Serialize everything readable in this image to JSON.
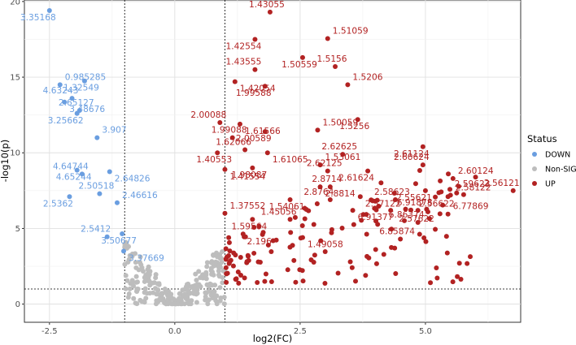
{
  "chart_data": {
    "type": "scatter",
    "title": "",
    "xlabel": "log2(FC)",
    "ylabel": "-log10(p)",
    "xlim": [
      -3.0,
      6.9
    ],
    "ylim": [
      -1.2,
      20.1
    ],
    "x_ticks": [
      -2.5,
      0.0,
      2.5,
      5.0
    ],
    "x_tick_labels": [
      "-2.5",
      "0.0",
      "2.5",
      "5.0"
    ],
    "y_ticks": [
      0,
      5,
      10,
      15,
      20
    ],
    "y_tick_labels": [
      "0",
      "5",
      "10",
      "15",
      "20"
    ],
    "grid": true,
    "fc_cutoff_lines": [
      -1.0,
      1.0
    ],
    "p_cutoff_line": 1.0,
    "legend": {
      "title": "Status",
      "position": "right",
      "entries": [
        {
          "name": "DOWN",
          "color": "#6a9ee0"
        },
        {
          "name": "Non-SIG",
          "color": "#bdbdbd"
        },
        {
          "name": "UP",
          "color": "#b22222"
        }
      ]
    },
    "colors": {
      "DOWN": "#6a9ee0",
      "Non-SIG": "#bdbdbd",
      "UP": "#b22222"
    },
    "labeled_points": [
      {
        "status": "DOWN",
        "label": "3.35168",
        "x": -2.5,
        "y": 19.4
      },
      {
        "status": "DOWN",
        "label": "0.985285",
        "x": -2.29,
        "y": 14.5
      },
      {
        "status": "DOWN",
        "label": "1.32549",
        "x": -1.8,
        "y": 14.75
      },
      {
        "status": "DOWN",
        "label": "4.63243",
        "x": -2.05,
        "y": 13.6
      },
      {
        "status": "DOWN",
        "label": "3.48676",
        "x": -2.2,
        "y": 13.35
      },
      {
        "status": "DOWN",
        "label": "2.65127",
        "x": -1.9,
        "y": 12.8
      },
      {
        "status": "DOWN",
        "label": "3.25662",
        "x": -1.95,
        "y": 12.6
      },
      {
        "status": "DOWN",
        "label": "3.907",
        "x": -1.55,
        "y": 11.0
      },
      {
        "status": "DOWN",
        "label": "4.65244",
        "x": -1.95,
        "y": 8.85
      },
      {
        "status": "DOWN",
        "label": "4.64744",
        "x": -1.85,
        "y": 8.6
      },
      {
        "status": "DOWN",
        "label": "2.64826",
        "x": -1.3,
        "y": 8.75
      },
      {
        "status": "DOWN",
        "label": "2.50518",
        "x": -1.5,
        "y": 7.3
      },
      {
        "status": "DOWN",
        "label": "2.5362",
        "x": -2.1,
        "y": 7.1
      },
      {
        "status": "DOWN",
        "label": "2.46616",
        "x": -1.15,
        "y": 6.7
      },
      {
        "status": "DOWN",
        "label": "3.50677",
        "x": -1.05,
        "y": 4.65
      },
      {
        "status": "DOWN",
        "label": "2.5412",
        "x": -1.35,
        "y": 4.45
      },
      {
        "status": "DOWN",
        "label": "3.37669",
        "x": -1.02,
        "y": 3.5
      },
      {
        "status": "UP",
        "label": "1.43055",
        "x": 1.9,
        "y": 19.3
      },
      {
        "status": "UP",
        "label": "1.42554",
        "x": 1.6,
        "y": 17.5
      },
      {
        "status": "UP",
        "label": "1.51059",
        "x": 3.05,
        "y": 17.55
      },
      {
        "status": "UP",
        "label": "1.50559",
        "x": 2.55,
        "y": 16.3
      },
      {
        "status": "UP",
        "label": "1.43555",
        "x": 1.6,
        "y": 15.5
      },
      {
        "status": "UP",
        "label": "1.42054",
        "x": 1.2,
        "y": 14.7
      },
      {
        "status": "UP",
        "label": "1.5156",
        "x": 3.2,
        "y": 15.7
      },
      {
        "status": "UP",
        "label": "1.99588",
        "x": 1.8,
        "y": 14.4
      },
      {
        "status": "UP",
        "label": "1.5206",
        "x": 3.45,
        "y": 14.5
      },
      {
        "status": "UP",
        "label": "1.5256",
        "x": 3.65,
        "y": 12.2
      },
      {
        "status": "UP",
        "label": "2.00088",
        "x": 0.9,
        "y": 12.0
      },
      {
        "status": "UP",
        "label": "1.61566",
        "x": 1.3,
        "y": 11.9
      },
      {
        "status": "UP",
        "label": "1.99088",
        "x": 1.15,
        "y": 11.0
      },
      {
        "status": "UP",
        "label": "2.00589",
        "x": 1.8,
        "y": 11.4
      },
      {
        "status": "UP",
        "label": "1.50059",
        "x": 2.85,
        "y": 11.5
      },
      {
        "status": "UP",
        "label": "1.40553",
        "x": 0.85,
        "y": 10.0
      },
      {
        "status": "UP",
        "label": "1.62066",
        "x": 1.4,
        "y": 10.2
      },
      {
        "status": "UP",
        "label": "1.61065",
        "x": 1.85,
        "y": 10.0
      },
      {
        "status": "UP",
        "label": "2.62625",
        "x": 3.35,
        "y": 9.9
      },
      {
        "status": "UP",
        "label": "2.61124",
        "x": 4.95,
        "y": 10.4
      },
      {
        "status": "UP",
        "label": "1.53061",
        "x": 2.9,
        "y": 9.2
      },
      {
        "status": "UP",
        "label": "1.98087",
        "x": 1.55,
        "y": 9.0
      },
      {
        "status": "UP",
        "label": "2.60624",
        "x": 4.95,
        "y": 9.2
      },
      {
        "status": "UP",
        "label": "1.41554",
        "x": 1.0,
        "y": 8.9
      },
      {
        "status": "UP",
        "label": "2.62125",
        "x": 3.05,
        "y": 8.8
      },
      {
        "status": "UP",
        "label": "2.61624",
        "x": 3.85,
        "y": 8.8
      },
      {
        "status": "UP",
        "label": "2.60124",
        "x": 5.55,
        "y": 8.3
      },
      {
        "status": "UP",
        "label": "2.59623",
        "x": 6.0,
        "y": 8.4
      },
      {
        "status": "UP",
        "label": "2.56121",
        "x": 6.75,
        "y": 7.5
      },
      {
        "status": "UP",
        "label": "2.8814",
        "x": 2.9,
        "y": 7.75
      },
      {
        "status": "UP",
        "label": "2.8714",
        "x": 3.1,
        "y": 7.75
      },
      {
        "status": "UP",
        "label": "2.55621",
        "x": 5.0,
        "y": 7.5
      },
      {
        "status": "UP",
        "label": "2.58122",
        "x": 5.5,
        "y": 7.2
      },
      {
        "status": "UP",
        "label": "1.54061",
        "x": 2.3,
        "y": 6.9
      },
      {
        "status": "UP",
        "label": "2.8764",
        "x": 3.1,
        "y": 6.9
      },
      {
        "status": "UP",
        "label": "2.57122",
        "x": 3.7,
        "y": 7.1
      },
      {
        "status": "UP",
        "label": "2.58623",
        "x": 4.4,
        "y": 6.9
      },
      {
        "status": "UP",
        "label": "2.56622",
        "x": 5.45,
        "y": 7.1
      },
      {
        "status": "UP",
        "label": "1.37552",
        "x": 1.0,
        "y": 6.0
      },
      {
        "status": "UP",
        "label": "1.59564",
        "x": 1.55,
        "y": 5.6
      },
      {
        "status": "UP",
        "label": "1.45056",
        "x": 2.3,
        "y": 5.6
      },
      {
        "status": "UP",
        "label": "6.91377",
        "x": 3.55,
        "y": 6.2
      },
      {
        "status": "UP",
        "label": "6.91878",
        "x": 4.85,
        "y": 6.2
      },
      {
        "status": "UP",
        "label": "2.57622",
        "x": 5.05,
        "y": 6.1
      },
      {
        "status": "UP",
        "label": "6.77869",
        "x": 5.45,
        "y": 5.95
      },
      {
        "status": "UP",
        "label": "2.196",
        "x": 1.75,
        "y": 4.6
      },
      {
        "status": "UP",
        "label": "6.86374",
        "x": 4.85,
        "y": 5.4
      },
      {
        "status": "UP",
        "label": "1.49058",
        "x": 2.55,
        "y": 4.4
      },
      {
        "status": "UP",
        "label": "6.85874",
        "x": 4.5,
        "y": 4.3
      }
    ]
  }
}
